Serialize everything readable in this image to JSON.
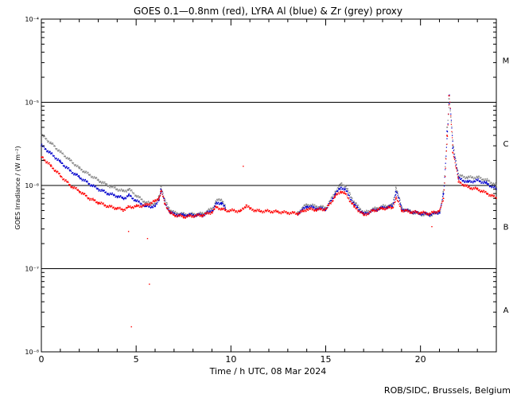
{
  "chart_data": {
    "type": "scatter",
    "title": "GOES 0.1—0.8nm (red), LYRA Al (blue) & Zr (grey) proxy",
    "xlabel": "Time / h UTC, 08 Mar 2024",
    "ylabel": "GOES Irradiance / (W m⁻²)",
    "credit": "ROB/SIDC, Brussels, Belgium",
    "xlim": [
      0,
      24
    ],
    "ylim": [
      1e-08,
      0.0001
    ],
    "yscale": "log",
    "x_ticks": [
      {
        "v": 0,
        "label": "0"
      },
      {
        "v": 5,
        "label": "5"
      },
      {
        "v": 10,
        "label": "10"
      },
      {
        "v": 15,
        "label": "15"
      },
      {
        "v": 20,
        "label": "20"
      }
    ],
    "y_ticks": [
      {
        "v": 0.0001,
        "label": "10⁻⁴"
      },
      {
        "v": 1e-05,
        "label": "10⁻⁵"
      },
      {
        "v": 1e-06,
        "label": "10⁻⁶"
      },
      {
        "v": 1e-07,
        "label": "10⁻⁷"
      },
      {
        "v": 1e-08,
        "label": "10⁻⁸"
      }
    ],
    "reference_lines": [
      1e-05,
      1e-06,
      1e-07
    ],
    "flare_classes": [
      {
        "label": "M",
        "y": 3.2e-05
      },
      {
        "label": "C",
        "y": 3.2e-06
      },
      {
        "label": "B",
        "y": 3.2e-07
      },
      {
        "label": "A",
        "y": 3.2e-08
      }
    ],
    "series": [
      {
        "color": "#ff0000",
        "x": [
          0.0,
          0.5,
          1.0,
          1.5,
          2.0,
          2.5,
          3.0,
          3.5,
          4.0,
          4.3,
          4.6,
          5.0,
          5.5,
          6.0,
          6.2,
          6.3,
          6.5,
          6.8,
          7.0,
          7.5,
          8.0,
          8.5,
          9.0,
          9.2,
          9.5,
          9.7,
          10.0,
          10.5,
          10.8,
          11.0,
          11.5,
          12.0,
          12.5,
          13.0,
          13.5,
          13.8,
          14.0,
          14.5,
          15.0,
          15.5,
          15.8,
          16.0,
          16.5,
          17.0,
          17.5,
          18.0,
          18.5,
          18.7,
          19.0,
          19.5,
          20.0,
          20.5,
          21.0,
          21.2,
          21.4,
          21.5,
          21.7,
          22.0,
          22.5,
          23.0,
          23.5,
          24.0
        ],
        "values": [
          2.2e-06,
          1.7e-06,
          1.3e-06,
          1e-06,
          8.5e-07,
          7e-07,
          6.2e-07,
          5.6e-07,
          5.3e-07,
          5.1e-07,
          5.5e-07,
          5.6e-07,
          5.8e-07,
          6.5e-07,
          7.2e-07,
          8.5e-07,
          6e-07,
          4.6e-07,
          4.4e-07,
          4.2e-07,
          4.3e-07,
          4.4e-07,
          4.8e-07,
          5.5e-07,
          5.2e-07,
          5e-07,
          5e-07,
          4.9e-07,
          5.8e-07,
          5.2e-07,
          4.9e-07,
          4.9e-07,
          4.8e-07,
          4.7e-07,
          4.6e-07,
          4.9e-07,
          5.2e-07,
          5.1e-07,
          5.2e-07,
          7.5e-07,
          8.5e-07,
          8e-07,
          5.5e-07,
          4.4e-07,
          5e-07,
          5.3e-07,
          5.4e-07,
          7e-07,
          5e-07,
          4.8e-07,
          4.7e-07,
          4.6e-07,
          5e-07,
          7e-07,
          4e-06,
          1.2e-05,
          2.5e-06,
          1.1e-06,
          9.5e-07,
          9e-07,
          8e-07,
          7e-07
        ]
      },
      {
        "color": "#0000cc",
        "x": [
          0.0,
          0.5,
          1.0,
          1.5,
          2.0,
          2.5,
          3.0,
          3.5,
          4.0,
          4.3,
          4.6,
          5.0,
          5.5,
          6.0,
          6.2,
          6.3,
          6.5,
          6.8,
          7.0,
          7.5,
          8.0,
          8.5,
          9.0,
          9.2,
          9.5,
          9.7,
          13.5,
          13.8,
          14.0,
          14.5,
          15.0,
          15.5,
          15.8,
          16.0,
          16.5,
          17.0,
          17.5,
          18.0,
          18.5,
          18.7,
          19.0,
          19.5,
          20.0,
          20.5,
          21.0,
          21.2,
          21.4,
          21.5,
          21.7,
          22.0,
          22.5,
          23.0,
          23.5,
          24.0
        ],
        "values": [
          3e-06,
          2.4e-06,
          1.9e-06,
          1.5e-06,
          1.25e-06,
          1.05e-06,
          9e-07,
          8e-07,
          7.4e-07,
          7e-07,
          7.6e-07,
          6.5e-07,
          5.6e-07,
          5.6e-07,
          7e-07,
          9e-07,
          6e-07,
          4.7e-07,
          4.5e-07,
          4.4e-07,
          4.4e-07,
          4.4e-07,
          5e-07,
          6e-07,
          6.2e-07,
          5.2e-07,
          4.6e-07,
          5.2e-07,
          5.6e-07,
          5.3e-07,
          5.2e-07,
          8e-07,
          9.5e-07,
          9e-07,
          5.8e-07,
          4.5e-07,
          5e-07,
          5.4e-07,
          5.6e-07,
          8.5e-07,
          5.2e-07,
          4.8e-07,
          4.6e-07,
          4.5e-07,
          4.8e-07,
          8e-07,
          4.5e-06,
          1.2e-05,
          2.8e-06,
          1.2e-06,
          1.1e-06,
          1.15e-06,
          1.05e-06,
          9e-07
        ]
      },
      {
        "color": "#888888",
        "x": [
          0.0,
          0.5,
          1.0,
          1.5,
          2.0,
          2.5,
          3.0,
          3.5,
          4.0,
          4.3,
          4.6,
          5.0,
          5.5,
          6.0,
          6.2,
          6.3,
          6.5,
          6.8,
          7.0,
          7.5,
          8.0,
          8.5,
          9.0,
          9.2,
          9.5,
          9.7,
          13.5,
          13.8,
          14.0,
          14.5,
          15.0,
          15.5,
          15.8,
          16.0,
          16.5,
          17.0,
          17.5,
          18.0,
          18.5,
          18.7,
          19.0,
          19.5,
          20.0,
          20.5,
          21.0,
          21.2,
          21.4,
          21.5,
          21.7,
          22.0,
          22.5,
          23.0,
          23.5,
          24.0
        ],
        "values": [
          4e-06,
          3.2e-06,
          2.5e-06,
          2e-06,
          1.6e-06,
          1.35e-06,
          1.15e-06,
          1e-06,
          9e-07,
          8.5e-07,
          9e-07,
          7.5e-07,
          6.2e-07,
          6e-07,
          7.5e-07,
          9.8e-07,
          6.5e-07,
          5e-07,
          4.7e-07,
          4.5e-07,
          4.5e-07,
          4.6e-07,
          5.3e-07,
          6.5e-07,
          6.8e-07,
          5.5e-07,
          4.7e-07,
          5.5e-07,
          5.9e-07,
          5.6e-07,
          5.4e-07,
          8.5e-07,
          1.05e-06,
          1e-06,
          6.2e-07,
          4.7e-07,
          5.2e-07,
          5.6e-07,
          5.8e-07,
          9.5e-07,
          5.3e-07,
          4.8e-07,
          4.5e-07,
          4.4e-07,
          4.8e-07,
          8.5e-07,
          5e-06,
          1.1e-05,
          3e-06,
          1.3e-06,
          1.25e-06,
          1.25e-06,
          1.15e-06,
          1e-06
        ]
      }
    ],
    "outliers": [
      {
        "color": "#ff0000",
        "x": 4.6,
        "y": 2.8e-07
      },
      {
        "color": "#ff0000",
        "x": 5.6,
        "y": 2.3e-07
      },
      {
        "color": "#ff0000",
        "x": 5.7,
        "y": 6.5e-08
      },
      {
        "color": "#ff0000",
        "x": 4.75,
        "y": 2e-08
      },
      {
        "color": "#ff0000",
        "x": 10.65,
        "y": 1.7e-06
      },
      {
        "color": "#ff0000",
        "x": 20.6,
        "y": 3.2e-07
      }
    ]
  }
}
